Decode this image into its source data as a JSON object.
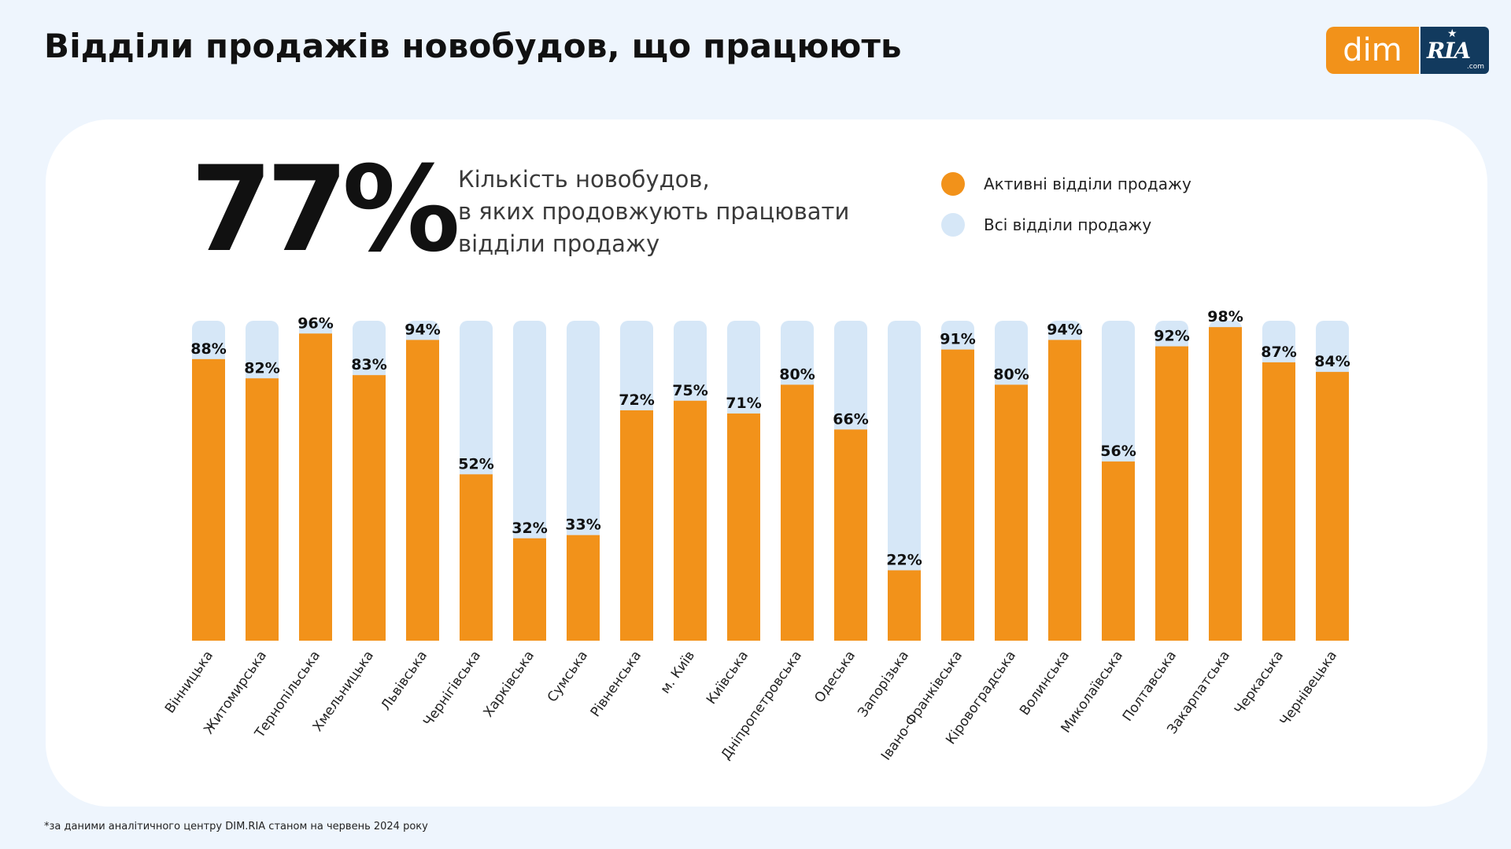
{
  "header": {
    "title": "Відділи продажів новобудов, що працюють",
    "logo_dim": "dim",
    "logo_ria": "RIA",
    "logo_com": ".com"
  },
  "highlight": {
    "value": "77%",
    "description_lines": [
      "Кількість новобудов,",
      "в яких продовжують працювати",
      "відділи продажу"
    ]
  },
  "legend": [
    {
      "label": "Активні відділи продажу",
      "color": "#F2921A"
    },
    {
      "label": "Всі відділи продажу",
      "color": "#D6E7F7"
    }
  ],
  "colors": {
    "active": "#F2921A",
    "total": "#D6E7F7",
    "background": "#EEF5FD",
    "card": "#FFFFFF"
  },
  "footnote": "*за даними аналітичного центру DIM.RIA станом на червень 2024 року",
  "chart_data": {
    "type": "bar",
    "categories": [
      "Вінницька",
      "Житомирська",
      "Тернопільська",
      "Хмельницька",
      "Львівська",
      "Чернігівська",
      "Харківська",
      "Сумська",
      "Рівненська",
      "м. Київ",
      "Київська",
      "Дніпропетровська",
      "Одеська",
      "Запорізька",
      "Івано-Франківська",
      "Кіровоградська",
      "Волинська",
      "Миколаївська",
      "Полтавська",
      "Закарпатська",
      "Черкаська",
      "Чернівецька"
    ],
    "series": [
      {
        "name": "Активні відділи продажу",
        "values": [
          88,
          82,
          96,
          83,
          94,
          52,
          32,
          33,
          72,
          75,
          71,
          80,
          66,
          22,
          91,
          80,
          94,
          56,
          92,
          98,
          87,
          84
        ]
      },
      {
        "name": "Всі відділи продажу",
        "values": [
          100,
          100,
          100,
          100,
          100,
          100,
          100,
          100,
          100,
          100,
          100,
          100,
          100,
          100,
          100,
          100,
          100,
          100,
          100,
          100,
          100,
          100
        ]
      }
    ],
    "labels": [
      "88%",
      "82%",
      "96%",
      "83%",
      "94%",
      "52%",
      "32%",
      "33%",
      "72%",
      "75%",
      "71%",
      "80%",
      "66%",
      "22%",
      "91%",
      "80%",
      "94%",
      "56%",
      "92%",
      "98%",
      "87%",
      "84%"
    ],
    "ylim": [
      0,
      100
    ],
    "stacked": "overlay",
    "grid": false,
    "legend_position": "top-right"
  }
}
